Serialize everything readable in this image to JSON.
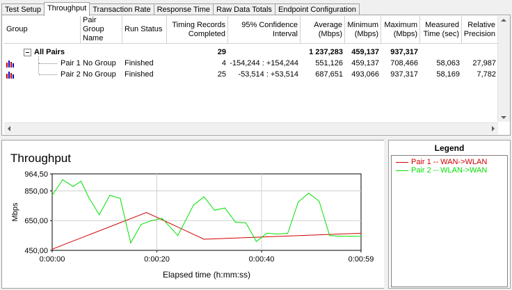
{
  "tabs": [
    "Test Setup",
    "Throughput",
    "Transaction Rate",
    "Response Time",
    "Raw Data Totals",
    "Endpoint Configuration"
  ],
  "active_tab": 1,
  "table": {
    "headers": [
      [
        "Group"
      ],
      [
        "Pair Group",
        "Name"
      ],
      [
        "Run Status"
      ],
      [
        "Timing Records",
        "Completed"
      ],
      [
        "95% Confidence",
        "Interval"
      ],
      [
        "Average",
        "(Mbps)"
      ],
      [
        "Minimum",
        "(Mbps)"
      ],
      [
        "Maximum",
        "(Mbps)"
      ],
      [
        "Measured",
        "Time (sec)"
      ],
      [
        "Relative",
        "Precision"
      ]
    ],
    "all_pairs": {
      "label": "All Pairs",
      "records": "29",
      "average": "1 237,283",
      "minimum": "459,137",
      "maximum": "937,317"
    },
    "rows": [
      {
        "pair": "Pair 1",
        "group": "No Group",
        "status": "Finished",
        "records": "4",
        "ci": "-154,244 : +154,244",
        "average": "551,126",
        "minimum": "459,137",
        "maximum": "708,466",
        "time": "58,063",
        "precision": "27,987"
      },
      {
        "pair": "Pair 2",
        "group": "No Group",
        "status": "Finished",
        "records": "25",
        "ci": "-53,514 : +53,514",
        "average": "687,651",
        "minimum": "493,066",
        "maximum": "937,317",
        "time": "58,169",
        "precision": "7,782"
      }
    ]
  },
  "chart_data": {
    "type": "line",
    "title": "Throughput",
    "xlabel": "Elapsed time (h:mm:ss)",
    "ylabel": "Mbps",
    "xlim": [
      0,
      59
    ],
    "ylim": [
      450,
      964.5
    ],
    "yticks": [
      "964,50",
      "850,00",
      "650,00",
      "450,00"
    ],
    "ytick_values": [
      964.5,
      850,
      650,
      450
    ],
    "xticks": [
      "0:00:00",
      "0:00:20",
      "0:00:40",
      "0:00:59"
    ],
    "xtick_values": [
      0,
      20,
      40,
      59
    ],
    "series": [
      {
        "name": "Pair 1 -- WAN->WLAN",
        "color": "#d00000",
        "x": [
          0,
          18,
          29,
          59
        ],
        "y": [
          458,
          705,
          525,
          565
        ]
      },
      {
        "name": "Pair 2 -- WLAN->WAN",
        "color": "#00e000",
        "x": [
          0,
          2,
          4,
          5.5,
          7,
          9,
          11,
          13,
          15,
          17,
          19,
          21,
          24,
          27,
          29,
          31,
          33,
          35,
          37,
          39,
          41,
          43,
          45,
          47,
          49,
          51,
          53,
          55,
          57,
          59
        ],
        "y": [
          820,
          925,
          880,
          915,
          805,
          690,
          820,
          800,
          500,
          625,
          650,
          665,
          550,
          755,
          810,
          720,
          735,
          640,
          635,
          510,
          565,
          560,
          565,
          775,
          835,
          780,
          550,
          545,
          545,
          545
        ]
      }
    ]
  },
  "legend": {
    "title": "Legend"
  }
}
